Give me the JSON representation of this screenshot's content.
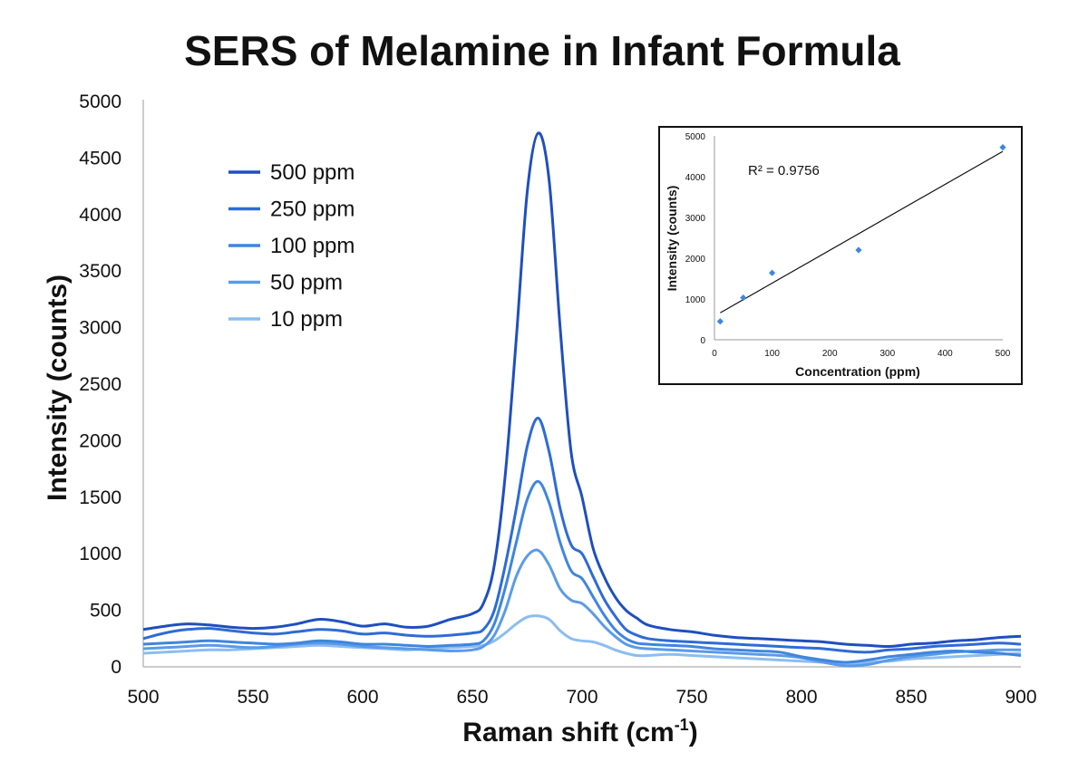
{
  "chart_data": [
    {
      "type": "line",
      "title": "SERS of Melamine in Infant Formula",
      "xlabel": "Raman shift (cm",
      "xlabel_superscript": "-1",
      "xlabel_suffix": ")",
      "ylabel": "Intensity (counts)",
      "xlim": [
        500,
        900
      ],
      "ylim": [
        0,
        5000
      ],
      "x_ticks": [
        500,
        550,
        600,
        650,
        700,
        750,
        800,
        850,
        900
      ],
      "y_ticks": [
        0,
        500,
        1000,
        1500,
        2000,
        2500,
        3000,
        3500,
        4000,
        4500,
        5000
      ],
      "grid": false,
      "legend_position": "top-left",
      "x": [
        500,
        510,
        520,
        530,
        540,
        550,
        560,
        570,
        580,
        590,
        600,
        610,
        620,
        630,
        640,
        650,
        655,
        660,
        665,
        670,
        675,
        680,
        685,
        690,
        695,
        700,
        705,
        710,
        715,
        720,
        725,
        730,
        740,
        750,
        760,
        770,
        780,
        790,
        800,
        810,
        820,
        830,
        840,
        850,
        860,
        870,
        880,
        890,
        900
      ],
      "series": [
        {
          "name": "500 ppm",
          "color": "#1f4fbf",
          "values": [
            330,
            360,
            380,
            370,
            350,
            340,
            350,
            380,
            420,
            400,
            360,
            380,
            350,
            360,
            420,
            470,
            560,
            900,
            1700,
            2900,
            4200,
            4720,
            4300,
            3000,
            1900,
            1500,
            1050,
            800,
            620,
            500,
            430,
            370,
            330,
            310,
            280,
            260,
            250,
            240,
            230,
            220,
            200,
            190,
            180,
            200,
            210,
            230,
            240,
            260,
            270
          ]
        },
        {
          "name": "250 ppm",
          "color": "#2e6bd6",
          "values": [
            250,
            300,
            330,
            340,
            320,
            300,
            290,
            310,
            330,
            320,
            290,
            300,
            280,
            270,
            280,
            300,
            330,
            500,
            900,
            1400,
            1950,
            2200,
            1900,
            1400,
            1080,
            1000,
            800,
            600,
            450,
            330,
            280,
            250,
            230,
            220,
            210,
            200,
            190,
            180,
            170,
            160,
            140,
            130,
            150,
            160,
            180,
            190,
            200,
            210,
            200
          ]
        },
        {
          "name": "100 ppm",
          "color": "#3f85e0",
          "values": [
            200,
            210,
            220,
            230,
            220,
            210,
            200,
            210,
            230,
            220,
            200,
            200,
            190,
            180,
            190,
            200,
            230,
            380,
            700,
            1100,
            1480,
            1640,
            1450,
            1100,
            850,
            780,
            620,
            460,
            330,
            250,
            210,
            200,
            190,
            180,
            160,
            150,
            140,
            130,
            90,
            60,
            40,
            60,
            90,
            110,
            130,
            140,
            130,
            120,
            100
          ]
        },
        {
          "name": "50 ppm",
          "color": "#5a9be8",
          "values": [
            160,
            170,
            180,
            190,
            180,
            170,
            180,
            200,
            210,
            200,
            180,
            170,
            160,
            150,
            140,
            150,
            180,
            280,
            500,
            800,
            980,
            1030,
            900,
            690,
            590,
            560,
            470,
            360,
            270,
            200,
            170,
            160,
            150,
            140,
            130,
            120,
            110,
            100,
            80,
            40,
            10,
            20,
            60,
            90,
            110,
            130,
            140,
            150,
            150
          ]
        },
        {
          "name": "10 ppm",
          "color": "#8cbdf0",
          "values": [
            120,
            130,
            140,
            150,
            150,
            160,
            170,
            180,
            190,
            180,
            170,
            160,
            150,
            160,
            170,
            180,
            190,
            230,
            300,
            380,
            440,
            450,
            420,
            320,
            250,
            230,
            220,
            190,
            150,
            120,
            100,
            100,
            110,
            100,
            90,
            80,
            70,
            60,
            50,
            40,
            30,
            40,
            50,
            70,
            80,
            90,
            100,
            110,
            120
          ]
        }
      ]
    },
    {
      "type": "scatter",
      "xlabel": "Concentration (ppm)",
      "ylabel": "Intensity (counts)",
      "xlim": [
        0,
        500
      ],
      "ylim": [
        0,
        5000
      ],
      "x_ticks": [
        0,
        100,
        200,
        300,
        400,
        500
      ],
      "y_ticks": [
        0,
        1000,
        2000,
        3000,
        4000,
        5000
      ],
      "annotation": "R² = 0.9756",
      "points_color": "#3f85e0",
      "x": [
        10,
        50,
        100,
        250,
        500
      ],
      "y": [
        450,
        1030,
        1640,
        2200,
        4720
      ],
      "trendline": {
        "x": [
          0,
          500
        ],
        "y": [
          580,
          4620
        ]
      }
    }
  ]
}
